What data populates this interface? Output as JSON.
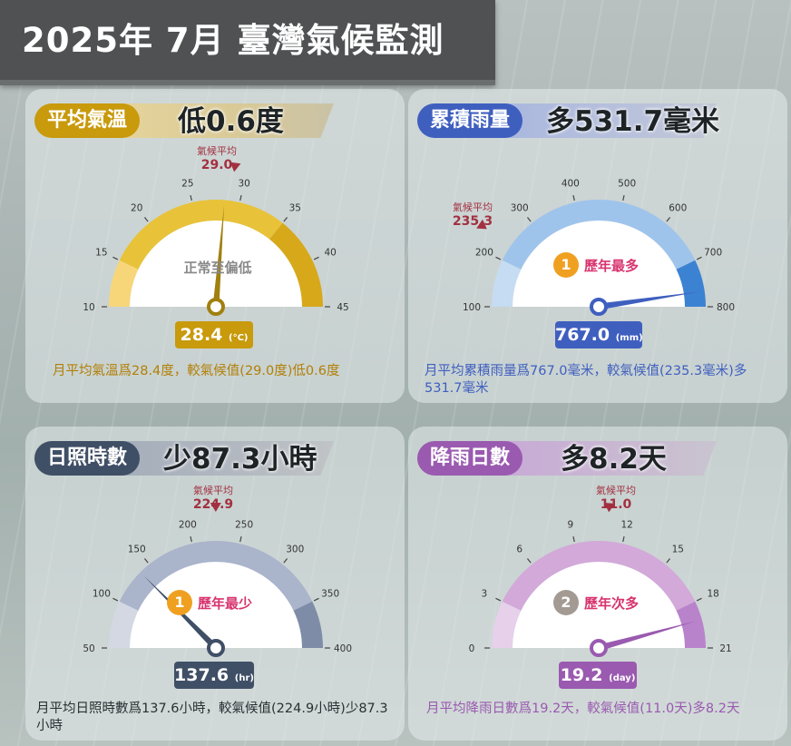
{
  "header": {
    "title": "2025年 7月  臺灣氣候監測"
  },
  "colors": {
    "temp": "#c89a0c",
    "rain": "#3f5fbf",
    "sun": "#3f4f66",
    "days": "#9a5ab0",
    "climate_label": "#a23040"
  },
  "cards": {
    "temp": {
      "label": "平均氣溫",
      "diff": "低0.6度",
      "climate_label": "氣候平均",
      "climate_value": "29.0",
      "center_text": "正常至偏低",
      "value": "28.4",
      "unit": "(°C)",
      "scale_min": 10,
      "scale_max": 45,
      "reading": 28.4,
      "climate": 29.0,
      "ticks": [
        "10",
        "15",
        "20",
        "25",
        "30",
        "35",
        "40",
        "45"
      ],
      "summary": "月平均氣溫爲28.4度，較氣候值(29.0度)低0.6度",
      "icon": "thermometer-icon"
    },
    "rain": {
      "label": "累積雨量",
      "diff": "多531.7毫米",
      "climate_label": "氣候平均",
      "climate_value": "235.3",
      "rank_number": "1",
      "rank_text": "歷年最多",
      "value": "767.0",
      "unit": "(mm)",
      "scale_min": 100,
      "scale_max": 800,
      "reading": 767.0,
      "climate": 235.3,
      "ticks": [
        "100",
        "200",
        "300",
        "400",
        "500",
        "600",
        "700",
        "800"
      ],
      "summary": "月平均累積雨量爲767.0毫米，較氣候值(235.3毫米)多531.7毫米",
      "icon": "rain-icon"
    },
    "sun": {
      "label": "日照時數",
      "diff": "少87.3小時",
      "climate_label": "氣候平均",
      "climate_value": "224.9",
      "rank_number": "1",
      "rank_text": "歷年最少",
      "value": "137.6",
      "unit": "(hr)",
      "scale_min": 50,
      "scale_max": 400,
      "reading": 137.6,
      "climate": 224.9,
      "ticks": [
        "50",
        "100",
        "150",
        "200",
        "250",
        "300",
        "350",
        "400"
      ],
      "summary": "月平均日照時數爲137.6小時，較氣候值(224.9小時)少87.3小時",
      "icon": "sun-icon"
    },
    "days": {
      "label": "降雨日數",
      "diff": "多8.2天",
      "climate_label": "氣候平均",
      "climate_value": "11.0",
      "rank_number": "2",
      "rank_text": "歷年次多",
      "value": "19.2",
      "unit": "(day)",
      "scale_min": 0,
      "scale_max": 21,
      "reading": 19.2,
      "climate": 11.0,
      "ticks": [
        "0",
        "3",
        "6",
        "9",
        "12",
        "15",
        "18",
        "21"
      ],
      "summary": "月平均降雨日數爲19.2天，較氣候值(11.0天)多8.2天",
      "icon": "umbrella-icon"
    }
  }
}
